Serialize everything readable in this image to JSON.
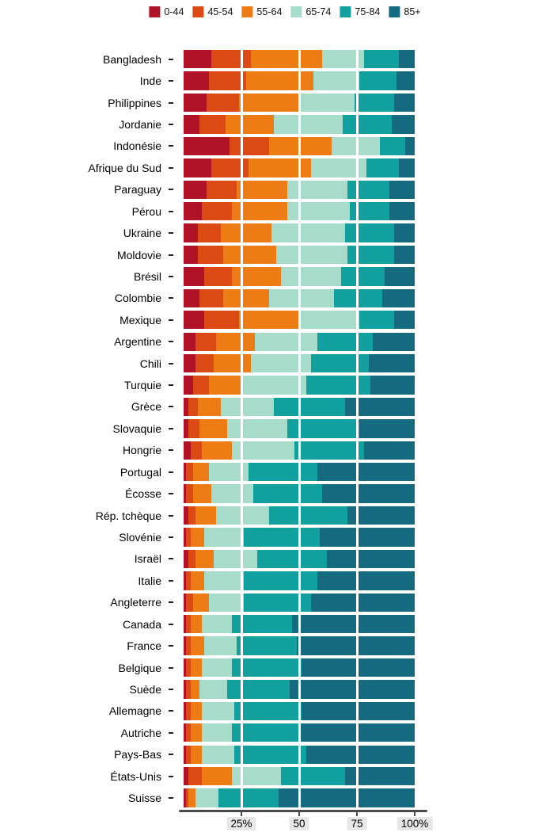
{
  "chart_data": {
    "type": "bar",
    "variant": "horizontal_stacked_percent",
    "title": "",
    "xlabel": "",
    "ylabel": "",
    "xlim": [
      0,
      100
    ],
    "legend_position": "top",
    "gridlines": [
      25,
      50,
      75
    ],
    "x_ticks": [
      {
        "value": 25,
        "label": "25%"
      },
      {
        "value": 50,
        "label": "50"
      },
      {
        "value": 75,
        "label": "75"
      },
      {
        "value": 100,
        "label": "100%"
      }
    ],
    "age_groups": [
      {
        "label": "0-44",
        "color": "#b01327"
      },
      {
        "label": "45-54",
        "color": "#db4914"
      },
      {
        "label": "55-64",
        "color": "#ee7c14"
      },
      {
        "label": "65-74",
        "color": "#a7dcca"
      },
      {
        "label": "75-84",
        "color": "#12a09f"
      },
      {
        "label": "85+",
        "color": "#156a80"
      }
    ],
    "categories": [
      "Bangladesh",
      "Inde",
      "Philippines",
      "Jordanie",
      "Indonésie",
      "Afrique du Sud",
      "Paraguay",
      "Pérou",
      "Ukraine",
      "Moldovie",
      "Brésil",
      "Colombie",
      "Mexique",
      "Argentine",
      "Chili",
      "Turquie",
      "Grèce",
      "Slovaquie",
      "Hongrie",
      "Portugal",
      "Écosse",
      "Rép. tchèque",
      "Slovénie",
      "Israël",
      "Italie",
      "Angleterre",
      "Canada",
      "France",
      "Belgique",
      "Suède",
      "Allemagne",
      "Autriche",
      "Pays-Bas",
      "États-Unis",
      "Suisse"
    ],
    "series": [
      {
        "name": "0-44",
        "values": [
          12,
          11,
          10,
          7,
          20,
          12,
          10,
          8,
          6,
          6,
          9,
          7,
          9,
          5,
          5,
          4,
          2,
          2,
          3,
          1,
          1,
          2,
          1,
          2,
          1,
          1,
          1,
          1,
          1,
          1,
          1,
          1,
          1,
          2,
          1
        ]
      },
      {
        "name": "45-54",
        "values": [
          17,
          16,
          14,
          11,
          17,
          16,
          13,
          13,
          10,
          11,
          12,
          10,
          15,
          9,
          8,
          7,
          4,
          5,
          5,
          3,
          3,
          3,
          2,
          3,
          2,
          3,
          2,
          2,
          2,
          2,
          2,
          2,
          2,
          6,
          1
        ]
      },
      {
        "name": "55-64",
        "values": [
          31,
          29,
          26,
          21,
          27,
          27,
          22,
          24,
          22,
          23,
          21,
          20,
          26,
          17,
          16,
          14,
          10,
          12,
          13,
          7,
          8,
          9,
          6,
          8,
          6,
          7,
          5,
          6,
          5,
          4,
          5,
          5,
          5,
          13,
          3
        ]
      },
      {
        "name": "65-74",
        "values": [
          18,
          20,
          24,
          30,
          21,
          24,
          26,
          27,
          32,
          31,
          26,
          28,
          26,
          27,
          26,
          28,
          23,
          26,
          27,
          17,
          18,
          23,
          17,
          19,
          17,
          15,
          13,
          14,
          13,
          12,
          14,
          13,
          14,
          21,
          10
        ]
      },
      {
        "name": "75-84",
        "values": [
          15,
          16,
          17,
          21,
          11,
          14,
          18,
          17,
          21,
          20,
          19,
          21,
          15,
          24,
          25,
          28,
          31,
          31,
          30,
          30,
          30,
          34,
          33,
          30,
          32,
          29,
          26,
          26,
          30,
          27,
          29,
          29,
          31,
          28,
          26
        ]
      },
      {
        "name": "85+",
        "values": [
          7,
          8,
          9,
          10,
          4,
          7,
          11,
          11,
          9,
          9,
          13,
          14,
          9,
          18,
          20,
          19,
          30,
          24,
          22,
          42,
          40,
          29,
          41,
          38,
          42,
          45,
          53,
          51,
          49,
          54,
          49,
          50,
          47,
          30,
          59
        ]
      }
    ]
  }
}
